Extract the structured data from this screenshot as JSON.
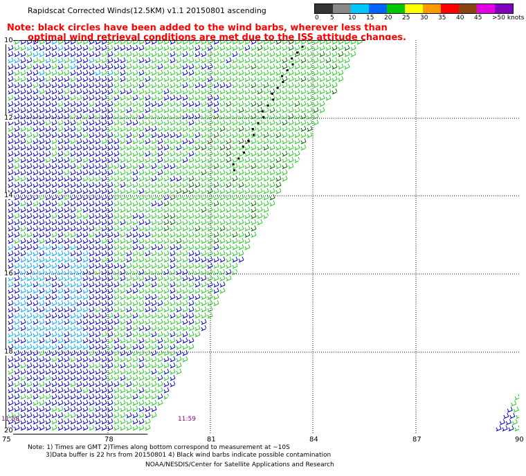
{
  "title": "Rapidscat Corrected Winds(12.5KM) v1.1 20150801 ascending",
  "note_line1": "Note: black circles have been added to the wind barbs, wherever less than",
  "note_line2": "optimal wind retrieval conditions are met due to the ISS attitude changes.",
  "legend": {
    "labels": [
      "0",
      "5",
      "10",
      "15",
      "20",
      "25",
      "30",
      "35",
      "40",
      "45",
      ">50 knots"
    ],
    "colors": [
      "#333333",
      "#888888",
      "#00c8ff",
      "#0064ff",
      "#00c800",
      "#ffff00",
      "#ff9900",
      "#ff0000",
      "#8b4513",
      "#e600e6",
      "#8000c0"
    ]
  },
  "map": {
    "lat_labels": [
      "10",
      "12",
      "14",
      "16",
      "18",
      "20"
    ],
    "lon_labels": [
      "75",
      "78",
      "81",
      "84",
      "87",
      "90"
    ],
    "time_left": "11:58",
    "time_mid": "11:59",
    "barb_colors": {
      "blue": "#0000cc",
      "green": "#22cc22",
      "cyan": "#00aaff",
      "dark": "#000000",
      "darkgreen": "#006400"
    }
  },
  "footnote_line1": "Note: 1) Times are GMT 2)Times along bottom correspond to measurement at ~10S",
  "footnote_line2": "3)Data buffer is 22 hrs from 20150801 4) Black wind barbs indicate possible contamination",
  "credit": "NOAA/NESDIS/Center for Satellite Applications and Research"
}
